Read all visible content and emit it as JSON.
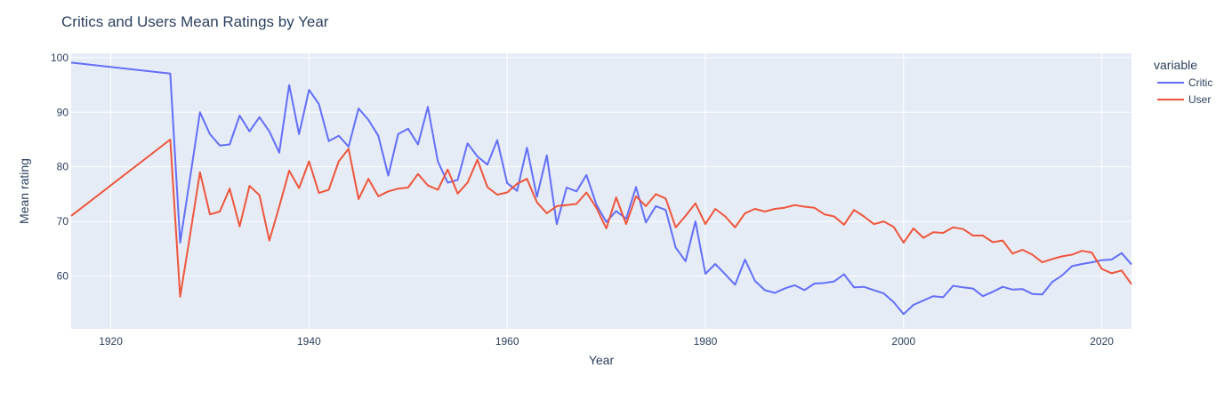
{
  "chart_data": {
    "type": "line",
    "title": "Critics and Users Mean Ratings by Year",
    "xlabel": "Year",
    "ylabel": "Mean rating",
    "xlim": [
      1916,
      2023
    ],
    "ylim": [
      50.3,
      100.8
    ],
    "xticks": [
      1920,
      1940,
      1960,
      1980,
      2000,
      2020
    ],
    "yticks": [
      60,
      70,
      80,
      90,
      100
    ],
    "grid": true,
    "legend": {
      "title": "variable",
      "position": "top-right"
    },
    "series": [
      {
        "name": "Critic",
        "color": "#636efa",
        "x": [
          1916,
          1926,
          1927,
          1928,
          1929,
          1930,
          1931,
          1932,
          1933,
          1934,
          1935,
          1936,
          1937,
          1938,
          1939,
          1940,
          1941,
          1942,
          1943,
          1944,
          1945,
          1946,
          1947,
          1948,
          1949,
          1950,
          1951,
          1952,
          1953,
          1954,
          1955,
          1956,
          1957,
          1958,
          1959,
          1960,
          1961,
          1962,
          1963,
          1964,
          1965,
          1966,
          1967,
          1968,
          1969,
          1970,
          1971,
          1972,
          1973,
          1974,
          1975,
          1976,
          1977,
          1978,
          1979,
          1980,
          1981,
          1982,
          1983,
          1984,
          1985,
          1986,
          1987,
          1988,
          1989,
          1990,
          1991,
          1992,
          1993,
          1994,
          1995,
          1996,
          1997,
          1998,
          1999,
          2000,
          2001,
          2002,
          2003,
          2004,
          2005,
          2006,
          2007,
          2008,
          2009,
          2010,
          2011,
          2012,
          2013,
          2014,
          2015,
          2016,
          2017,
          2018,
          2019,
          2020,
          2021,
          2022,
          2023
        ],
        "y": [
          99.1,
          97.1,
          66.1,
          78.0,
          90.0,
          86.0,
          83.9,
          84.1,
          89.4,
          86.5,
          89.1,
          86.5,
          82.6,
          95.0,
          86.0,
          94.1,
          91.5,
          84.7,
          85.7,
          83.7,
          90.7,
          88.6,
          85.7,
          78.4,
          86.0,
          87.0,
          84.1,
          91.0,
          81.0,
          77.1,
          77.6,
          84.3,
          81.9,
          80.4,
          84.9,
          77.0,
          75.6,
          83.5,
          74.5,
          82.1,
          69.5,
          76.2,
          75.5,
          78.5,
          73.1,
          69.9,
          71.9,
          70.5,
          76.3,
          69.8,
          72.8,
          72.1,
          65.2,
          62.7,
          70.0,
          60.4,
          62.2,
          60.3,
          58.4,
          63.0,
          59.1,
          57.4,
          56.9,
          57.7,
          58.3,
          57.4,
          58.6,
          58.7,
          59.0,
          60.3,
          57.9,
          58.0,
          57.4,
          56.8,
          55.2,
          53.0,
          54.7,
          55.5,
          56.3,
          56.1,
          58.2,
          57.9,
          57.7,
          56.3,
          57.1,
          58.0,
          57.5,
          57.6,
          56.7,
          56.6,
          58.9,
          60.1,
          61.8,
          62.2,
          62.5,
          62.9,
          63.0,
          64.2,
          62.1
        ]
      },
      {
        "name": "User",
        "color": "#ef553b",
        "x": [
          1916,
          1926,
          1927,
          1928,
          1929,
          1930,
          1931,
          1932,
          1933,
          1934,
          1935,
          1936,
          1937,
          1938,
          1939,
          1940,
          1941,
          1942,
          1943,
          1944,
          1945,
          1946,
          1947,
          1948,
          1949,
          1950,
          1951,
          1952,
          1953,
          1954,
          1955,
          1956,
          1957,
          1958,
          1959,
          1960,
          1961,
          1962,
          1963,
          1964,
          1965,
          1966,
          1967,
          1968,
          1969,
          1970,
          1971,
          1972,
          1973,
          1974,
          1975,
          1976,
          1977,
          1978,
          1979,
          1980,
          1981,
          1982,
          1983,
          1984,
          1985,
          1986,
          1987,
          1988,
          1989,
          1990,
          1991,
          1992,
          1993,
          1994,
          1995,
          1996,
          1997,
          1998,
          1999,
          2000,
          2001,
          2002,
          2003,
          2004,
          2005,
          2006,
          2007,
          2008,
          2009,
          2010,
          2011,
          2012,
          2013,
          2014,
          2015,
          2016,
          2017,
          2018,
          2019,
          2020,
          2021,
          2022,
          2023
        ],
        "y": [
          71.0,
          85.0,
          56.2,
          67.5,
          79.0,
          71.3,
          71.8,
          76.0,
          69.1,
          76.5,
          74.8,
          66.5,
          72.7,
          79.3,
          76.1,
          81.0,
          75.2,
          75.8,
          81.0,
          83.3,
          74.1,
          77.8,
          74.6,
          75.5,
          76.0,
          76.2,
          78.7,
          76.6,
          75.8,
          79.5,
          75.1,
          77.1,
          81.3,
          76.3,
          74.9,
          75.3,
          76.9,
          77.8,
          73.5,
          71.5,
          72.8,
          73.0,
          73.2,
          75.3,
          72.5,
          68.7,
          74.4,
          69.5,
          74.6,
          72.8,
          75.0,
          74.2,
          68.9,
          71.0,
          73.3,
          69.5,
          72.3,
          70.9,
          68.9,
          71.5,
          72.3,
          71.8,
          72.3,
          72.5,
          73.0,
          72.7,
          72.5,
          71.3,
          70.9,
          69.4,
          72.1,
          70.9,
          69.5,
          70.0,
          69.0,
          66.1,
          68.7,
          67.0,
          68.0,
          67.9,
          68.9,
          68.6,
          67.4,
          67.4,
          66.2,
          66.5,
          64.1,
          64.8,
          63.9,
          62.5,
          63.1,
          63.6,
          63.9,
          64.6,
          64.3,
          61.3,
          60.5,
          61.0,
          58.5
        ]
      }
    ]
  }
}
